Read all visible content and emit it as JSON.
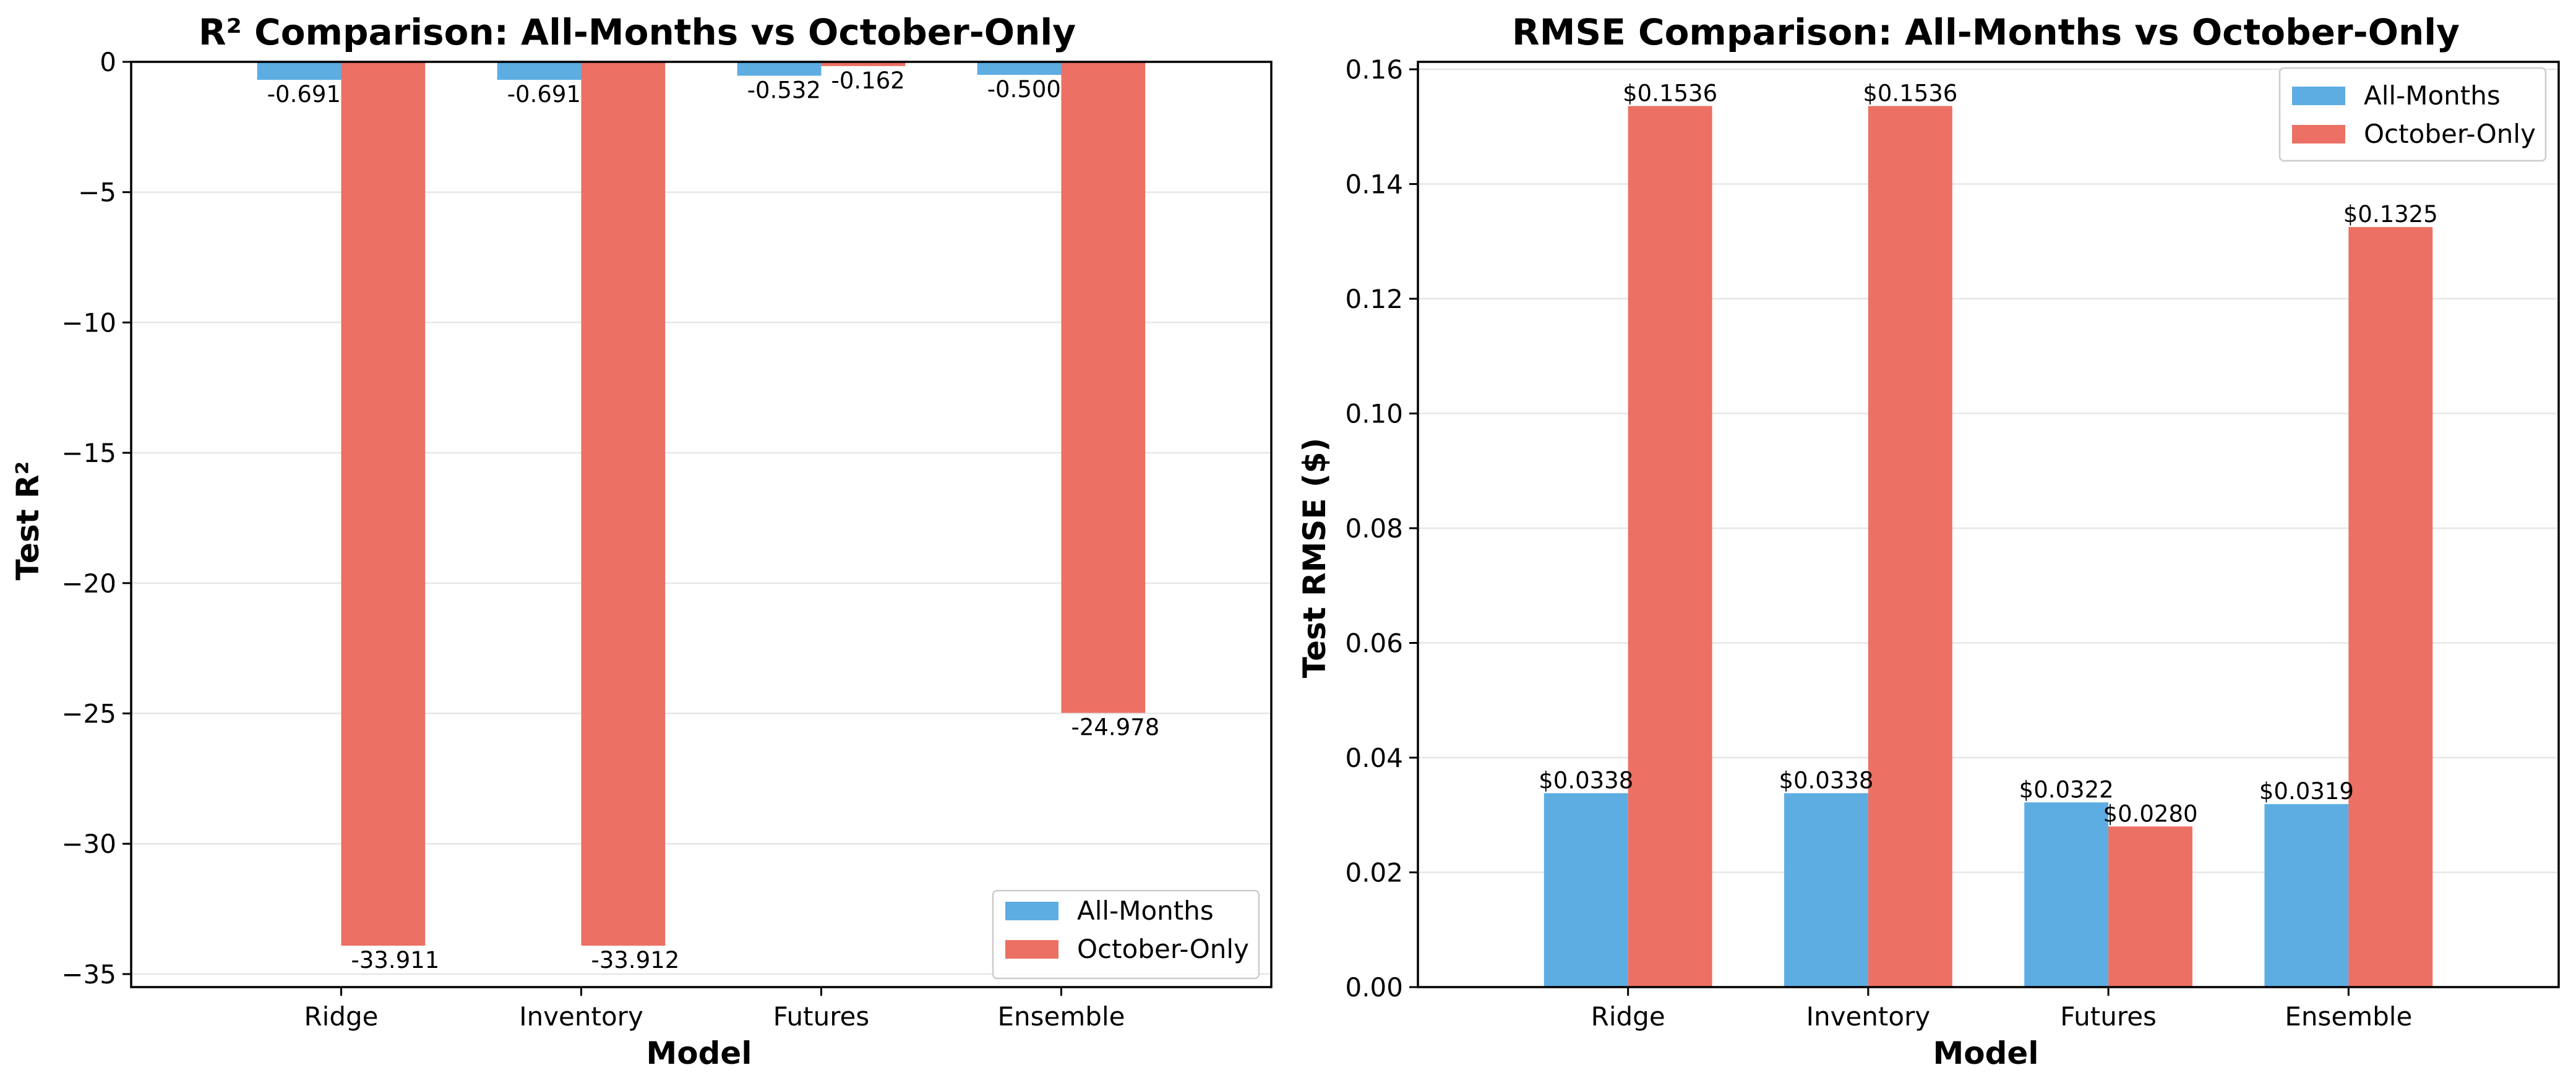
{
  "colors": {
    "all_months": "#5DADE2",
    "october_only": "#EC7063"
  },
  "chart_data": [
    {
      "type": "bar",
      "title": "R² Comparison: All-Months vs October-Only",
      "xlabel": "Model",
      "ylabel": "Test R²",
      "categories": [
        "Ridge",
        "Inventory",
        "Futures",
        "Ensemble"
      ],
      "ylim": [
        -35.5,
        0
      ],
      "yticks": [
        0,
        -5,
        -10,
        -15,
        -20,
        -25,
        -30,
        -35
      ],
      "ytick_labels": [
        "0",
        "−5",
        "−10",
        "−15",
        "−20",
        "−25",
        "−30",
        "−35"
      ],
      "grid": "y",
      "legend_position": "lower-right",
      "series": [
        {
          "name": "All-Months",
          "color": "#5DADE2",
          "values": [
            -0.691,
            -0.691,
            -0.532,
            -0.5
          ],
          "labels": [
            "-0.691",
            "-0.691",
            "-0.532",
            "-0.500"
          ]
        },
        {
          "name": "October-Only",
          "color": "#EC7063",
          "values": [
            -33.911,
            -33.912,
            -0.162,
            -24.978
          ],
          "labels": [
            "-33.911",
            "-33.912",
            "-0.162",
            "-24.978"
          ]
        }
      ]
    },
    {
      "type": "bar",
      "title": "RMSE Comparison: All-Months vs October-Only",
      "xlabel": "Model",
      "ylabel": "Test RMSE ($)",
      "categories": [
        "Ridge",
        "Inventory",
        "Futures",
        "Ensemble"
      ],
      "ylim": [
        0,
        0.1613
      ],
      "yticks": [
        0,
        0.02,
        0.04,
        0.06,
        0.08,
        0.1,
        0.12,
        0.14,
        0.16
      ],
      "ytick_labels": [
        "0.00",
        "0.02",
        "0.04",
        "0.06",
        "0.08",
        "0.10",
        "0.12",
        "0.14",
        "0.16"
      ],
      "grid": "y",
      "legend_position": "upper-right",
      "series": [
        {
          "name": "All-Months",
          "color": "#5DADE2",
          "values": [
            0.0338,
            0.0338,
            0.0322,
            0.0319
          ],
          "labels": [
            "$0.0338",
            "$0.0338",
            "$0.0322",
            "$0.0319"
          ]
        },
        {
          "name": "October-Only",
          "color": "#EC7063",
          "values": [
            0.1536,
            0.1536,
            0.028,
            0.1325
          ],
          "labels": [
            "$0.1536",
            "$0.1536",
            "$0.0280",
            "$0.1325"
          ]
        }
      ]
    }
  ]
}
